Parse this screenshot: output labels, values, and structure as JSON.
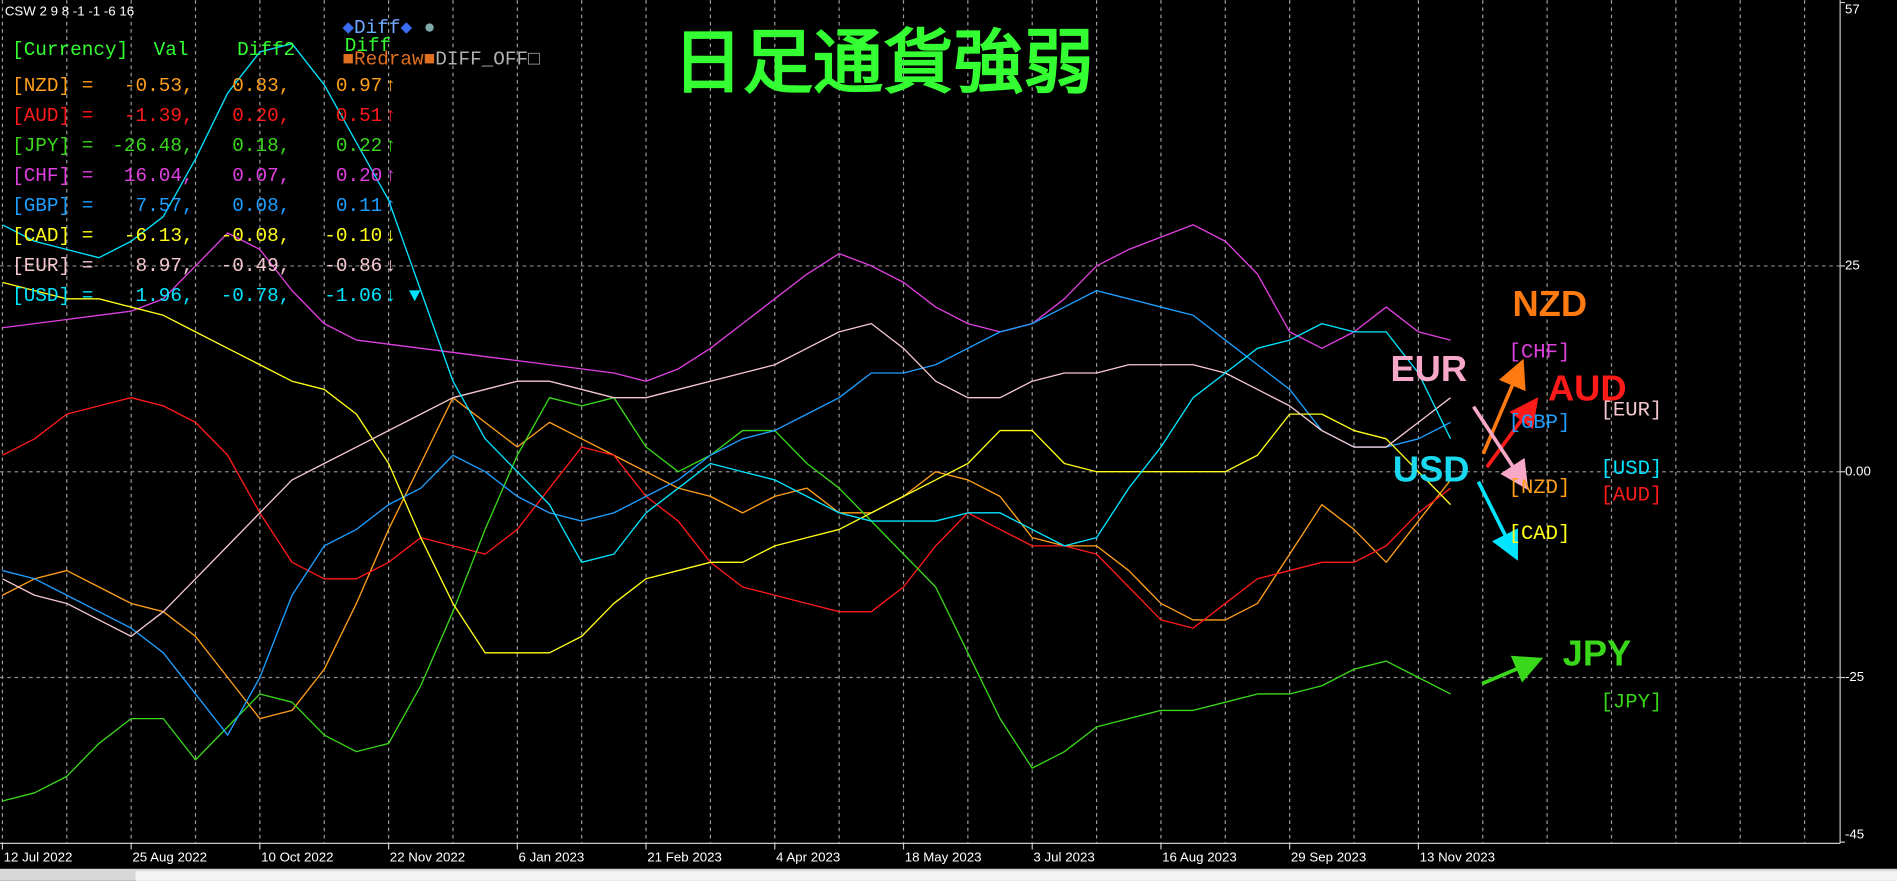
{
  "chart_data": {
    "type": "line",
    "title": "日足通貨強弱",
    "categories": [
      "12 Jul 2022",
      null,
      null,
      null,
      "25 Aug 2022",
      null,
      null,
      null,
      "10 Oct 2022",
      null,
      null,
      null,
      "22 Nov 2022",
      null,
      null,
      null,
      "6 Jan 2023",
      null,
      null,
      null,
      "21 Feb 2023",
      null,
      null,
      null,
      "4 Apr 2023",
      null,
      null,
      null,
      "18 May 2023",
      null,
      null,
      null,
      "3 Jul 2023",
      null,
      null,
      null,
      "16 Aug 2023",
      null,
      null,
      null,
      "29 Sep 2023",
      null,
      null,
      null,
      "13 Nov 2023",
      null
    ],
    "series": [
      {
        "name": "NZD",
        "color": "#ff9f1a",
        "values": [
          -15,
          -13,
          -12,
          -14,
          -16,
          -17,
          -20,
          -25,
          -30,
          -29,
          -24,
          -16,
          -7,
          1,
          9,
          6,
          3,
          6,
          4,
          2,
          0,
          -2,
          -3,
          -5,
          -3,
          -2,
          -5,
          -5,
          -3,
          0,
          -1,
          -3,
          -8,
          -9,
          -9,
          -12,
          -16,
          -18,
          -18,
          -16,
          -10,
          -4,
          -7,
          -11,
          -6,
          -1
        ]
      },
      {
        "name": "AUD",
        "color": "#ff1a1a",
        "values": [
          2,
          4,
          7,
          8,
          9,
          8,
          6,
          2,
          -5,
          -11,
          -13,
          -13,
          -11,
          -8,
          -9,
          -10,
          -7,
          -2,
          3,
          2,
          -3,
          -6,
          -11,
          -14,
          -15,
          -16,
          -17,
          -17,
          -14,
          -9,
          -5,
          -7,
          -9,
          -9,
          -10,
          -14,
          -18,
          -19,
          -16,
          -13,
          -12,
          -11,
          -11,
          -9,
          -5,
          -2
        ]
      },
      {
        "name": "JPY",
        "color": "#39d81a",
        "values": [
          -40,
          -39,
          -37,
          -33,
          -30,
          -30,
          -35,
          -31,
          -27,
          -28,
          -32,
          -34,
          -33,
          -26,
          -17,
          -7,
          2,
          9,
          8,
          9,
          3,
          0,
          2,
          5,
          5,
          1,
          -2,
          -6,
          -10,
          -14,
          -22,
          -30,
          -36,
          -34,
          -31,
          -30,
          -29,
          -29,
          -28,
          -27,
          -27,
          -26,
          -24,
          -23,
          -25,
          -27
        ]
      },
      {
        "name": "CHF",
        "color": "#e040e0",
        "values": [
          17.5,
          18,
          18.5,
          19,
          19.5,
          21,
          25,
          29,
          27,
          22,
          18,
          16,
          15.5,
          15,
          14.5,
          14,
          13.5,
          13,
          12.5,
          12,
          11,
          12.5,
          15,
          18,
          21,
          24,
          26.5,
          25,
          23,
          20,
          18,
          17,
          18,
          21,
          25,
          27,
          28.5,
          30,
          28,
          24,
          17,
          15,
          17,
          20,
          17,
          16
        ]
      },
      {
        "name": "GBP",
        "color": "#1e9fff",
        "values": [
          -12,
          -13,
          -15,
          -17,
          -19,
          -22,
          -27,
          -32,
          -25,
          -15,
          -9,
          -7,
          -4,
          -2,
          2,
          0,
          -3,
          -5,
          -6,
          -5,
          -3,
          -1,
          2,
          4,
          5,
          7,
          9,
          12,
          12,
          13,
          15,
          17,
          18,
          20,
          22,
          21,
          20,
          19,
          16,
          13,
          10,
          5,
          3,
          3,
          4,
          6
        ]
      },
      {
        "name": "CAD",
        "color": "#ffff1a",
        "values": [
          23,
          22,
          21,
          21,
          20,
          19,
          17,
          15,
          13,
          11,
          10,
          7,
          1,
          -8,
          -16,
          -22,
          -22,
          -22,
          -20,
          -16,
          -13,
          -12,
          -11,
          -11,
          -9,
          -8,
          -7,
          -5,
          -3,
          -1,
          1,
          5,
          5,
          1,
          0,
          0,
          0,
          0,
          0,
          2,
          7,
          7,
          5,
          4,
          0,
          -4
        ]
      },
      {
        "name": "EUR",
        "color": "#f5c8d0",
        "values": [
          -13,
          -15,
          -16,
          -18,
          -20,
          -17,
          -13,
          -9,
          -5,
          -1,
          1,
          3,
          5,
          7,
          9,
          10,
          11,
          11,
          10,
          9,
          9,
          10,
          11,
          12,
          13,
          15,
          17,
          18,
          15,
          11,
          9,
          9,
          11,
          12,
          12,
          13,
          13,
          13,
          12,
          10,
          8,
          5,
          3,
          3,
          6,
          9
        ]
      },
      {
        "name": "USD",
        "color": "#00e5ff",
        "values": [
          30,
          28,
          27,
          26,
          28,
          31,
          38,
          46,
          51,
          52,
          47,
          40,
          33,
          22,
          11,
          4,
          0,
          -4,
          -11,
          -10,
          -5,
          -2,
          1,
          0,
          -1,
          -3,
          -5,
          -6,
          -6,
          -6,
          -5,
          -5,
          -7,
          -9,
          -8,
          -2,
          3,
          9,
          12,
          15,
          16,
          18,
          17,
          17,
          12,
          4
        ]
      }
    ],
    "ylim": [
      -45,
      57
    ],
    "yticks": [
      -45,
      -25,
      {
        "value": 0,
        "label": "0.00"
      },
      25,
      57
    ],
    "grid": true
  },
  "status": "CSW 2 9 8 -1 -1 -6 16",
  "table": {
    "header": [
      "[Currency]",
      "Val",
      "Diff2",
      "Diff"
    ],
    "header_color": "#33ff33",
    "rows": [
      {
        "color": "#ff9f1a",
        "cells": [
          "[NZD] =",
          "-0.53,",
          "0.83,",
          "0.97",
          "↑"
        ]
      },
      {
        "color": "#ff1a1a",
        "cells": [
          "[AUD] =",
          "-1.39,",
          "0.20,",
          "0.51",
          "↑"
        ]
      },
      {
        "color": "#39d81a",
        "cells": [
          "[JPY] =",
          "-26.48,",
          "0.18,",
          "0.22",
          "↑"
        ]
      },
      {
        "color": "#e040e0",
        "cells": [
          "[CHF] =",
          "16.04,",
          "0.07,",
          "0.20",
          "↑"
        ]
      },
      {
        "color": "#1e9fff",
        "cells": [
          "[GBP] =",
          "7.57,",
          "0.08,",
          "0.11",
          "↑"
        ]
      },
      {
        "color": "#ffff1a",
        "cells": [
          "[CAD] =",
          "-6.13,",
          "-0.08,",
          "-0.10",
          "↓"
        ]
      },
      {
        "color": "#f5c8d0",
        "cells": [
          "[EUR] =",
          "8.97,",
          "-0.49,",
          "-0.86",
          "↓"
        ]
      },
      {
        "color": "#00e5ff",
        "cells": [
          "[USD] =",
          "1.96,",
          "-0.78,",
          "-1.06",
          "↓",
          "▼"
        ]
      }
    ]
  },
  "buttons": [
    [
      {
        "text": "◆",
        "color": "#3a6df0"
      },
      {
        "text": "Diff",
        "color": "#6fa8ff"
      },
      {
        "text": "◆",
        "color": "#3a6df0"
      },
      {
        "text": " ●",
        "color": "#7fa8a8"
      }
    ],
    [
      {
        "text": "■",
        "color": "#e07020"
      },
      {
        "text": "Redraw",
        "color": "#e07020"
      },
      {
        "text": "■",
        "color": "#e07020"
      },
      {
        "text": "DIFF_OFF",
        "color": "#b0b0b0"
      },
      {
        "text": "□",
        "color": "#b0b0b0"
      }
    ]
  ],
  "annotations": [
    {
      "text": "NZD",
      "color": "#ff7a10"
    },
    {
      "text": "[CHF]",
      "color": "#e040e0"
    },
    {
      "text": "EUR",
      "color": "#f7a8c8"
    },
    {
      "text": "AUD",
      "color": "#ff1a1a"
    },
    {
      "text": "[EUR]",
      "color": "#f5c8d0"
    },
    {
      "text": "[GBP]",
      "color": "#1e9fff"
    },
    {
      "text": "USD",
      "color": "#1ad8f0"
    },
    {
      "text": "[USD]",
      "color": "#00e5ff"
    },
    {
      "text": "[NZD]",
      "color": "#ff9f1a"
    },
    {
      "text": "[AUD]",
      "color": "#ff1a1a"
    },
    {
      "text": "[CAD]",
      "color": "#ffff1a"
    },
    {
      "text": "JPY",
      "color": "#39d81a"
    },
    {
      "text": "[JPY]",
      "color": "#39d81a"
    }
  ]
}
